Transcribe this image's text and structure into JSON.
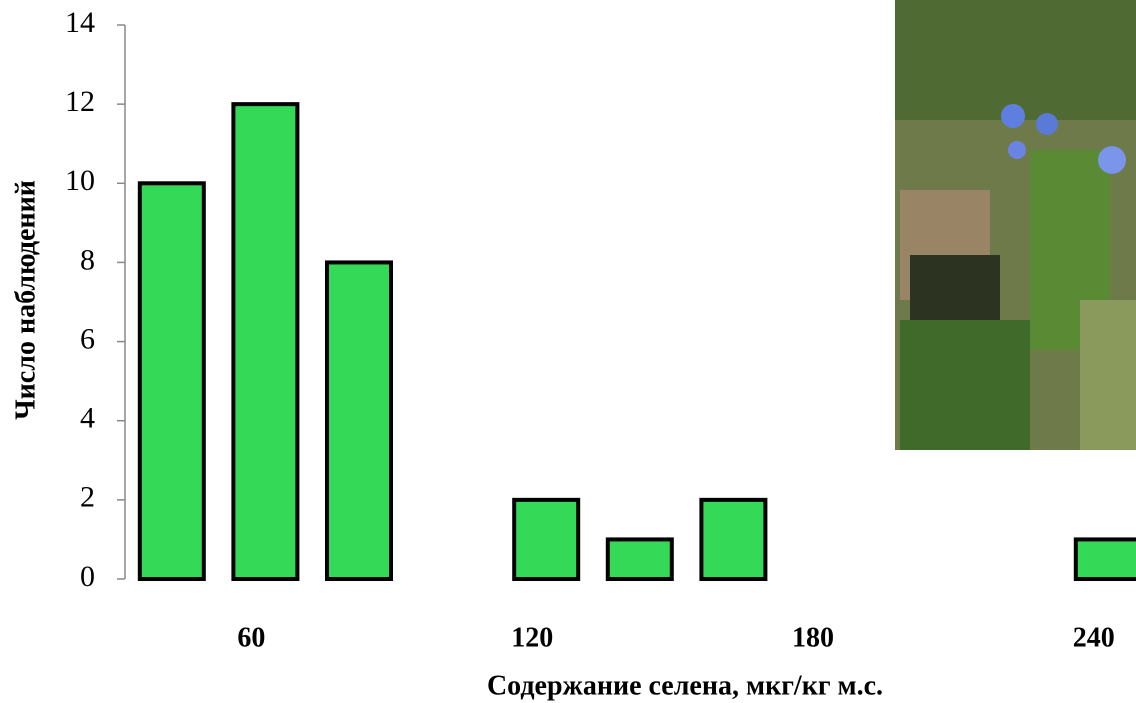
{
  "chart_data": {
    "type": "bar",
    "x_label": "Содержание селена, мкг/кг м.с.",
    "y_label": "Число наблюдений",
    "categories": [
      null,
      60,
      null,
      null,
      120,
      null,
      null,
      180,
      null,
      null,
      240
    ],
    "values": [
      10,
      12,
      8,
      0,
      2,
      1,
      2,
      0,
      0,
      0,
      1
    ],
    "color": "#33d957",
    "ylim": [
      0,
      14
    ],
    "yticks": [
      0,
      2,
      4,
      6,
      8,
      10,
      12,
      14
    ]
  }
}
